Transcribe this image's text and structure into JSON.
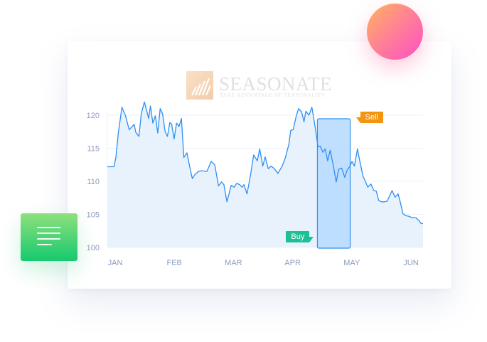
{
  "brand": {
    "name": "SEASONATE",
    "tagline": "TAKE ADVANTAGE OF SEASONALITY"
  },
  "chart_data": {
    "type": "line",
    "x_axis": {
      "ticks": [
        "JAN",
        "FEB",
        "MAR",
        "APR",
        "MAY",
        "JUN"
      ],
      "range": [
        0,
        26
      ]
    },
    "y_axis": {
      "ticks": [
        100,
        105,
        110,
        115,
        120
      ],
      "range": [
        100,
        120
      ]
    },
    "grid": true,
    "x": [
      0.0,
      0.3,
      0.55,
      0.7,
      0.9,
      1.2,
      1.5,
      1.8,
      2.2,
      2.35,
      2.6,
      2.8,
      3.05,
      3.4,
      3.55,
      3.75,
      3.95,
      4.15,
      4.35,
      4.55,
      4.75,
      4.95,
      5.15,
      5.3,
      5.5,
      5.7,
      5.9,
      6.1,
      6.3,
      6.55,
      6.75,
      7.0,
      7.2,
      7.5,
      7.8,
      8.2,
      8.55,
      8.85,
      9.15,
      9.4,
      9.6,
      9.85,
      10.2,
      10.45,
      10.65,
      10.9,
      11.1,
      11.25,
      11.5,
      11.8,
      12.05,
      12.35,
      12.55,
      12.8,
      13.0,
      13.25,
      13.5,
      13.75,
      14.05,
      14.4,
      14.65,
      14.95,
      15.1,
      15.3,
      15.55,
      15.75,
      16.0,
      16.2,
      16.35,
      16.6,
      16.85,
      17.1,
      17.35,
      17.55,
      17.75,
      17.95,
      18.15,
      18.35,
      18.6,
      18.85,
      19.05,
      19.3,
      19.55,
      19.75,
      19.95,
      20.15,
      20.35,
      20.6,
      20.8,
      21.05,
      21.25,
      21.45,
      21.7,
      21.95,
      22.15,
      22.35,
      22.6,
      22.85,
      23.05,
      23.25,
      23.45,
      23.7,
      23.95,
      24.15,
      24.35,
      24.6,
      24.85,
      25.1,
      25.4,
      25.65,
      25.85,
      26.0
    ],
    "values": [
      112.2,
      112.2,
      112.2,
      113.6,
      117.3,
      121.2,
      119.9,
      117.8,
      118.6,
      117.4,
      116.8,
      120.3,
      122.0,
      119.5,
      121.4,
      118.8,
      119.9,
      117.3,
      121.0,
      120.2,
      117.6,
      116.8,
      118.9,
      118.6,
      116.4,
      118.8,
      118.3,
      119.5,
      113.6,
      114.3,
      112.5,
      110.4,
      111.0,
      111.5,
      111.6,
      111.5,
      113.0,
      112.5,
      109.3,
      109.9,
      109.5,
      106.9,
      109.4,
      109.1,
      109.7,
      109.5,
      109.1,
      109.5,
      108.1,
      111.0,
      114.0,
      113.1,
      114.9,
      112.3,
      113.7,
      111.9,
      112.3,
      111.9,
      111.2,
      112.3,
      113.5,
      115.6,
      117.7,
      117.8,
      119.8,
      121.0,
      120.5,
      119.0,
      120.6,
      120.0,
      121.2,
      118.4,
      115.2,
      115.3,
      114.4,
      114.9,
      113.1,
      114.7,
      112.5,
      109.9,
      111.8,
      112.0,
      110.6,
      111.7,
      112.2,
      113.0,
      112.3,
      114.9,
      113.0,
      110.8,
      110.0,
      109.1,
      109.6,
      108.6,
      108.5,
      107.1,
      106.9,
      106.9,
      107.0,
      107.8,
      108.6,
      107.6,
      108.1,
      106.7,
      105.1,
      104.8,
      104.7,
      104.5,
      104.5,
      104.1,
      103.6,
      103.6
    ],
    "highlight": {
      "from": 17.3,
      "to": 20.0
    },
    "annotations": [
      {
        "label": "Buy",
        "color": "#1dbf94"
      },
      {
        "label": "Sell",
        "color": "#f2950f"
      }
    ],
    "colors": {
      "line": "#2f8ff0",
      "area": "#e8f2fd",
      "highlight_fill": "#b9dbff",
      "highlight_stroke": "#2f8ff0"
    }
  }
}
